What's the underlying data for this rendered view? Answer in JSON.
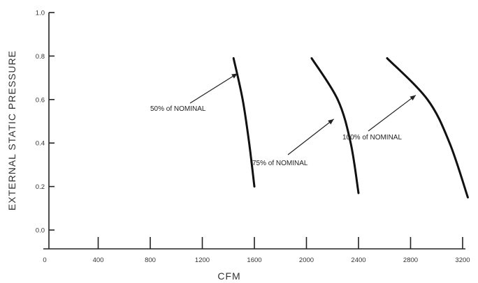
{
  "chart_data": {
    "type": "line",
    "title": "",
    "xlabel": "CFM",
    "ylabel": "EXTERNAL STATIC PRESSURE",
    "xlim": [
      0,
      3200
    ],
    "ylim": [
      0,
      1.0
    ],
    "x_ticks": [
      "0",
      "400",
      "800",
      "1200",
      "1600",
      "2000",
      "2400",
      "2800",
      "3200"
    ],
    "y_ticks": [
      "0.0",
      "0.2",
      "0.4",
      "0.6",
      "0.8",
      "1.0"
    ],
    "grid": false,
    "series": [
      {
        "name": "50% of NOMINAL",
        "points": [
          [
            1440,
            0.79
          ],
          [
            1510,
            0.6
          ],
          [
            1560,
            0.4
          ],
          [
            1600,
            0.2
          ]
        ],
        "label_point": [
          1470,
          0.72
        ]
      },
      {
        "name": "75% of NOMINAL",
        "points": [
          [
            2040,
            0.79
          ],
          [
            2240,
            0.6
          ],
          [
            2340,
            0.4
          ],
          [
            2400,
            0.17
          ]
        ],
        "label_point": [
          2210,
          0.51
        ]
      },
      {
        "name": "100% of NOMINAL",
        "points": [
          [
            2620,
            0.79
          ],
          [
            2930,
            0.6
          ],
          [
            3100,
            0.4
          ],
          [
            3240,
            0.15
          ]
        ],
        "label_point": [
          2840,
          0.62
        ]
      }
    ],
    "annotations": [
      "50% of NOMINAL",
      "75% of NOMINAL",
      "100% of NOMINAL"
    ],
    "colors": {
      "line": "#111111",
      "text": "#222222",
      "axis": "#222222"
    }
  }
}
